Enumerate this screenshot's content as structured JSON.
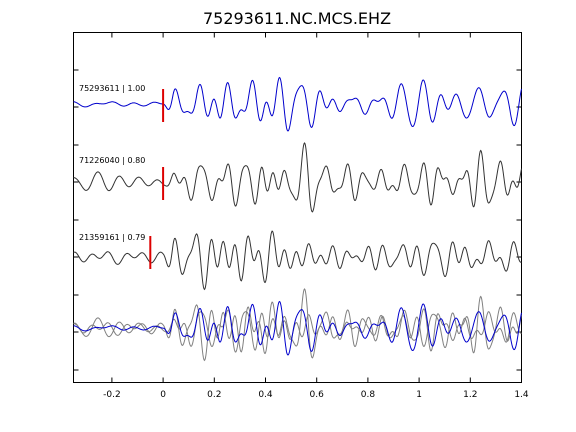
{
  "chart_data": {
    "type": "line",
    "title": "75293611.NC.MCS.EHZ",
    "xlabel": "",
    "ylabel": "",
    "xlim": [
      -0.35,
      1.4
    ],
    "xticks": [
      -0.2,
      0,
      0.2,
      0.4,
      0.6,
      0.8,
      1,
      1.2,
      1.4
    ],
    "xtick_labels": [
      "-0.2",
      "0",
      "0.2",
      "0.4",
      "0.6",
      "0.8",
      "1",
      "1.2",
      "1.4"
    ],
    "grid": false,
    "colors": {
      "master": "#0000cc",
      "trace": "#333333",
      "overlay": "#808080",
      "pick": "#dd0000"
    },
    "traces": [
      {
        "label": "75293611 | 1.00",
        "pick_time": 0.0,
        "color": "#0000cc"
      },
      {
        "label": "71226040 | 0.80",
        "pick_time": 0.0,
        "color": "#333333"
      },
      {
        "label": "21359161 | 0.79",
        "pick_time": -0.05,
        "color": "#333333"
      }
    ],
    "stack": {
      "label": "",
      "description_of_contents": ""
    }
  }
}
